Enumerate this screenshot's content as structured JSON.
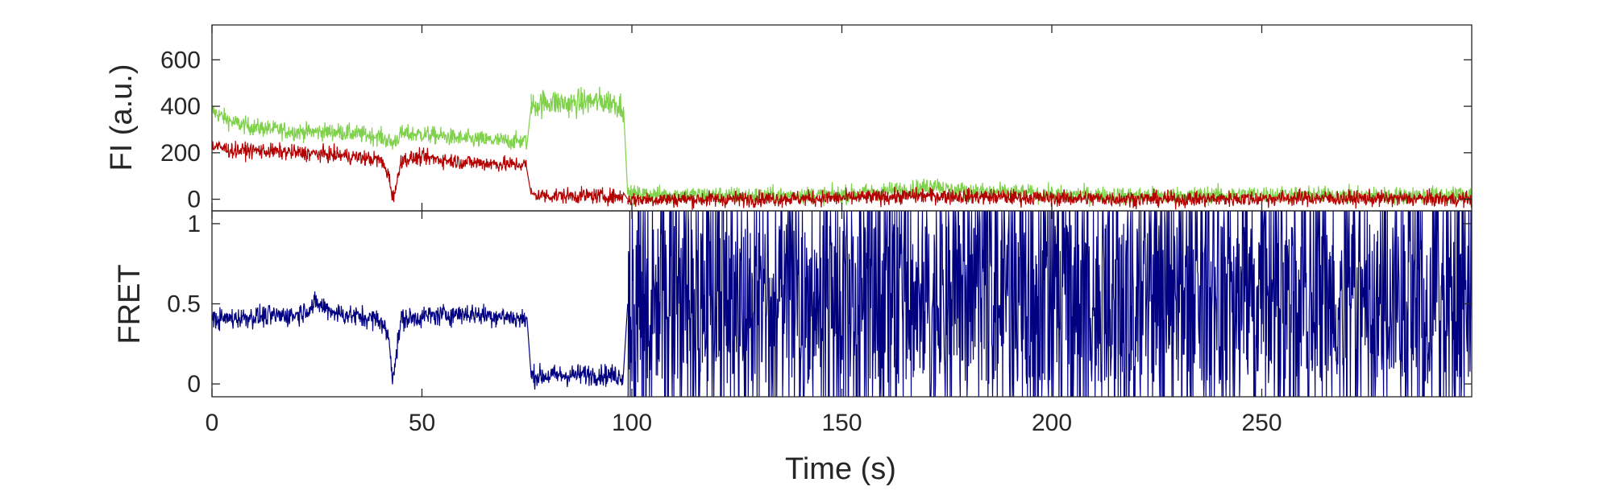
{
  "chart_data": [
    {
      "type": "line",
      "panel": "top",
      "ylabel": "FI (a.u.)",
      "xlim": [
        0,
        300
      ],
      "ylim": [
        -50,
        750
      ],
      "yticks": [
        0,
        200,
        400,
        600
      ],
      "ytick_labels": [
        "0",
        "200",
        "400",
        "600"
      ],
      "grid": false,
      "colors": {
        "donor": "#7fd04b",
        "acceptor": "#b30000"
      },
      "series": [
        {
          "key": "donor",
          "color": "#7fd04b",
          "segments": [
            {
              "x": [
                0,
                5,
                10,
                20,
                30,
                40,
                43,
                45,
                50,
                60,
                70,
                75
              ],
              "y": [
                380,
                330,
                310,
                290,
                290,
                270,
                240,
                280,
                280,
                260,
                250,
                250
              ]
            },
            {
              "x": [
                76,
                80,
                85,
                90,
                95,
                98
              ],
              "y": [
                400,
                420,
                410,
                420,
                420,
                400
              ]
            },
            {
              "x": [
                99,
                110,
                130,
                150,
                170,
                172,
                175,
                200,
                220,
                250,
                280,
                300
              ],
              "y": [
                20,
                20,
                15,
                20,
                50,
                70,
                40,
                20,
                15,
                20,
                15,
                20
              ]
            }
          ]
        },
        {
          "key": "acceptor",
          "color": "#b30000",
          "segments": [
            {
              "x": [
                0,
                5,
                10,
                20,
                30,
                40,
                42,
                43,
                44,
                45,
                50,
                60,
                70,
                75
              ],
              "y": [
                230,
                210,
                210,
                200,
                190,
                170,
                110,
                10,
                60,
                170,
                180,
                160,
                150,
                150
              ]
            },
            {
              "x": [
                76,
                80,
                90,
                98
              ],
              "y": [
                20,
                15,
                15,
                10
              ]
            },
            {
              "x": [
                99,
                120,
                150,
                170,
                200,
                230,
                260,
                300
              ],
              "y": [
                0,
                0,
                5,
                15,
                5,
                0,
                5,
                0
              ]
            }
          ]
        }
      ]
    },
    {
      "type": "line",
      "panel": "bottom",
      "xlabel": "Time (s)",
      "ylabel": "FRET",
      "xlim": [
        0,
        300
      ],
      "ylim": [
        -0.08,
        1.08
      ],
      "xticks": [
        0,
        50,
        100,
        150,
        200,
        250
      ],
      "xtick_labels": [
        "0",
        "50",
        "100",
        "150",
        "200",
        "250"
      ],
      "yticks": [
        0,
        0.5,
        1
      ],
      "ytick_labels": [
        "0",
        "0.5",
        "1"
      ],
      "grid": false,
      "series": [
        {
          "key": "fret",
          "color": "#000080",
          "segments": [
            {
              "x": [
                0,
                10,
                20,
                25,
                30,
                40,
                42,
                43,
                44,
                45,
                50,
                60,
                70,
                75
              ],
              "y": [
                0.4,
                0.42,
                0.43,
                0.5,
                0.44,
                0.4,
                0.3,
                0.05,
                0.2,
                0.4,
                0.42,
                0.44,
                0.42,
                0.4
              ]
            },
            {
              "x": [
                76,
                80,
                90,
                98
              ],
              "y": [
                0.05,
                0.05,
                0.06,
                0.05
              ]
            },
            {
              "x": [
                99,
                300
              ],
              "y": [
                0.5,
                0.5
              ],
              "noise": "full-range 0–1"
            }
          ]
        }
      ]
    }
  ]
}
